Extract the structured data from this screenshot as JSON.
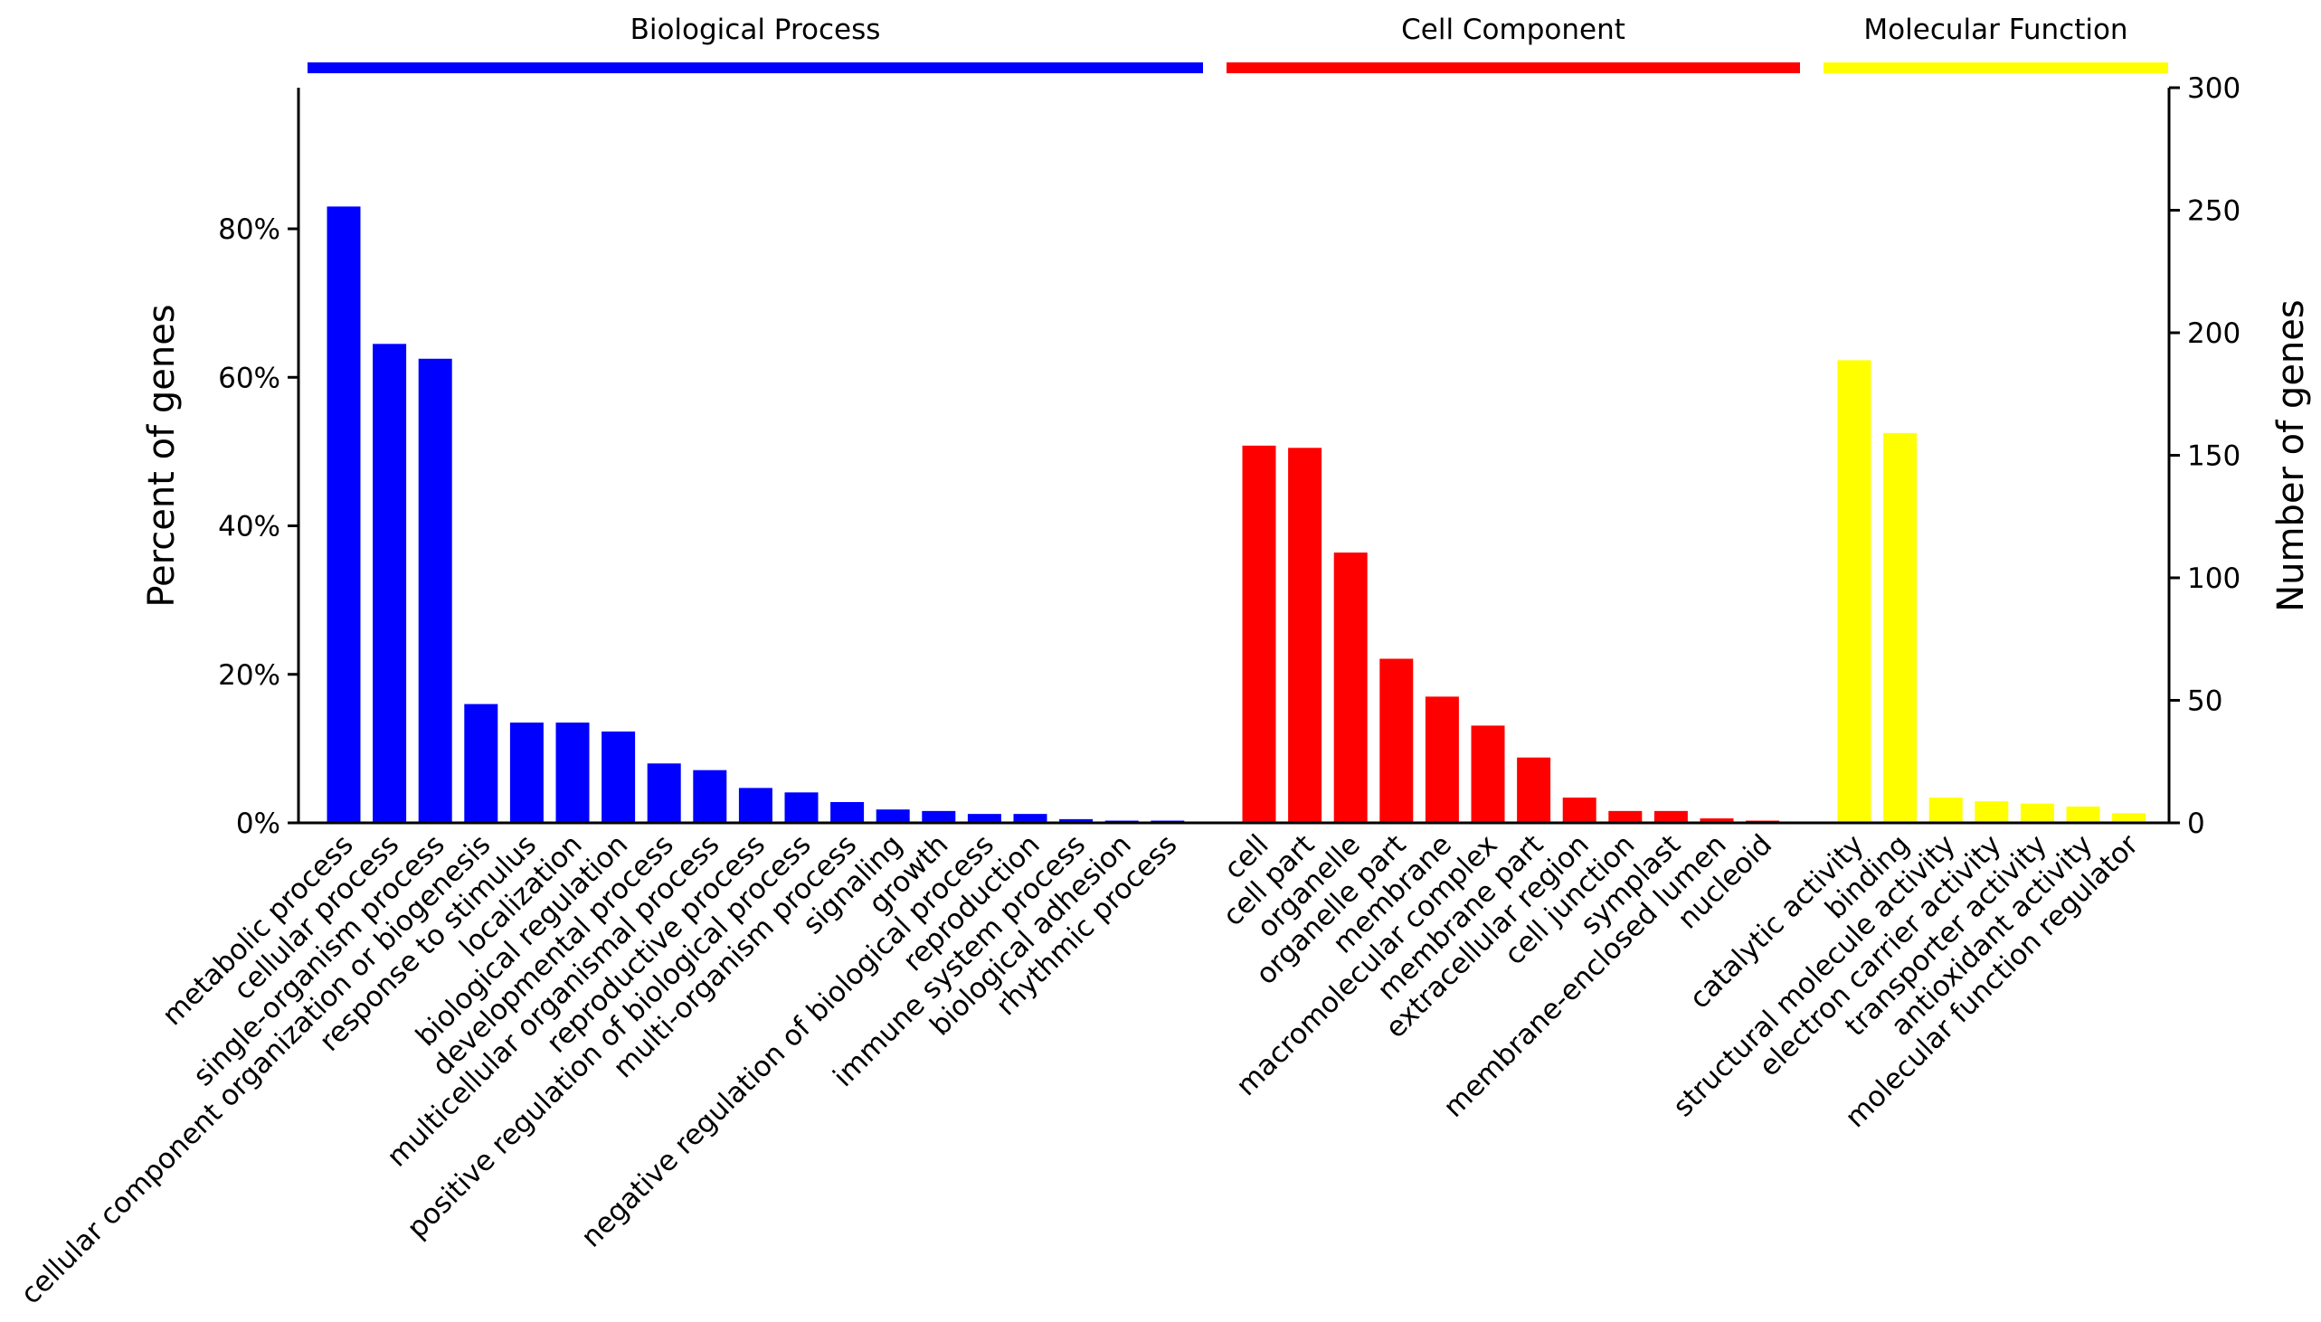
{
  "chart_data": {
    "type": "bar",
    "ylabel_left": "Percent of genes",
    "ylabel_right": "Number of genes",
    "left_ticks": [
      "0%",
      "20%",
      "40%",
      "60%",
      "80%"
    ],
    "left_tick_values": [
      0,
      20,
      40,
      60,
      80
    ],
    "ylim_left": [
      0,
      99
    ],
    "right_ticks": [
      "0",
      "50",
      "100",
      "150",
      "200",
      "250",
      "300"
    ],
    "right_tick_values": [
      0,
      50,
      100,
      150,
      200,
      250,
      300
    ],
    "ylim_right": [
      0,
      300
    ],
    "groups": [
      {
        "name": "Biological Process",
        "color": "#0000ff",
        "categories": [
          "metabolic process",
          "cellular process",
          "single-organism process",
          "cellular component organization or biogenesis",
          "response to stimulus",
          "localization",
          "biological regulation",
          "developmental process",
          "multicellular organismal process",
          "reproductive process",
          "positive regulation of biological process",
          "multi-organism process",
          "signaling",
          "growth",
          "negative regulation of biological process",
          "reproduction",
          "immune system process",
          "biological adhesion",
          "rhythmic process"
        ],
        "values": [
          83,
          64.5,
          62.5,
          16,
          13.5,
          13.5,
          12.3,
          8,
          7.1,
          4.7,
          4.1,
          2.8,
          1.8,
          1.6,
          1.2,
          1.2,
          0.5,
          0.3,
          0.3
        ]
      },
      {
        "name": "Cell Component",
        "color": "#ff0000",
        "categories": [
          "cell",
          "cell part",
          "organelle",
          "organelle part",
          "membrane",
          "macromolecular complex",
          "membrane part",
          "extracellular region",
          "cell junction",
          "symplast",
          "membrane-enclosed lumen",
          "nucleoid"
        ],
        "values": [
          50.8,
          50.5,
          36.4,
          22.1,
          17,
          13.1,
          8.8,
          3.4,
          1.6,
          1.6,
          0.6,
          0.3
        ]
      },
      {
        "name": "Molecular Function",
        "color": "#ffff00",
        "categories": [
          "catalytic activity",
          "binding",
          "structural molecule activity",
          "electron carrier activity",
          "transporter activity",
          "antioxidant activity",
          "molecular function regulator"
        ],
        "values": [
          62.3,
          52.5,
          3.4,
          2.9,
          2.6,
          2.2,
          1.3
        ]
      }
    ]
  }
}
